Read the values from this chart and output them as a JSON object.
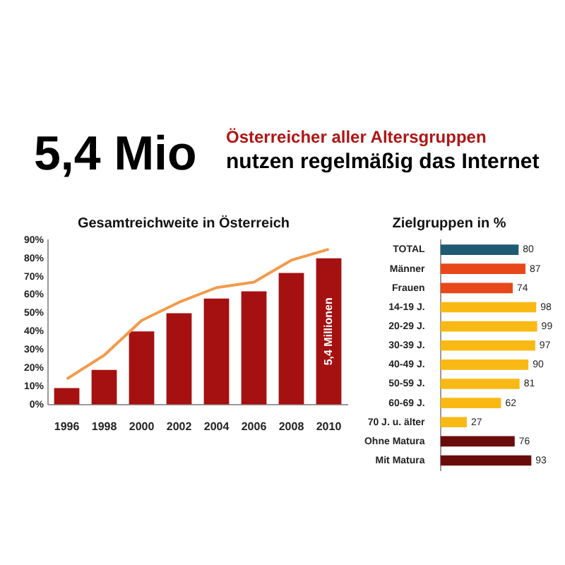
{
  "chart_data": [
    {
      "type": "other",
      "title": "5,4 Mio",
      "subtitle": "Österreicher aller Altersgruppen",
      "annotations": [
        "nutzen regelmäßig das Internet"
      ]
    },
    {
      "type": "bar",
      "title": "Gesamtreichweite in Österreich",
      "categories": [
        "1996",
        "1998",
        "2000",
        "2002",
        "2004",
        "2006",
        "2008",
        "2010"
      ],
      "series": [
        {
          "type": "bar",
          "color": "#a51010",
          "values": [
            9,
            19,
            40,
            50,
            58,
            62,
            72,
            80
          ]
        },
        {
          "type": "line",
          "color": "#f39a4c",
          "values": [
            14,
            27,
            46,
            56,
            64,
            67,
            79,
            85
          ]
        }
      ],
      "ylim": [
        0,
        90
      ],
      "yticks": [
        {
          "value": 0,
          "label": "0%"
        },
        {
          "value": 10,
          "label": "10%"
        },
        {
          "value": 20,
          "label": "20%"
        },
        {
          "value": 30,
          "label": "30%"
        },
        {
          "value": 40,
          "label": "40%"
        },
        {
          "value": 50,
          "label": "50%"
        },
        {
          "value": 60,
          "label": "60%"
        },
        {
          "value": 70,
          "label": "70%"
        },
        {
          "value": 80,
          "label": "80%"
        },
        {
          "value": 90,
          "label": "90%"
        }
      ],
      "marker": "none",
      "annotations": [
        "5,4 Millionen"
      ]
    },
    {
      "type": "bar",
      "orientation": "horizontal",
      "title": "Zielgruppen in %",
      "categories": [
        "TOTAL",
        "Männer",
        "Frauen",
        "14-19 J.",
        "20-29 J.",
        "30-39 J.",
        "40-49 J.",
        "50-59 J.",
        "60-69 J.",
        "70 J. u. älter",
        "Ohne Matura",
        "Mit Matura"
      ],
      "values": [
        80,
        87,
        74,
        98,
        99,
        97,
        90,
        81,
        62,
        27,
        76,
        93
      ],
      "colors": [
        "#1f5a73",
        "#e8471a",
        "#e8471a",
        "#f9b915",
        "#f9b915",
        "#f9b915",
        "#f9b915",
        "#f9b915",
        "#f9b915",
        "#f9b915",
        "#6b0c0c",
        "#6b0c0c"
      ],
      "data_labels": true,
      "tick_labels": "y"
    }
  ]
}
